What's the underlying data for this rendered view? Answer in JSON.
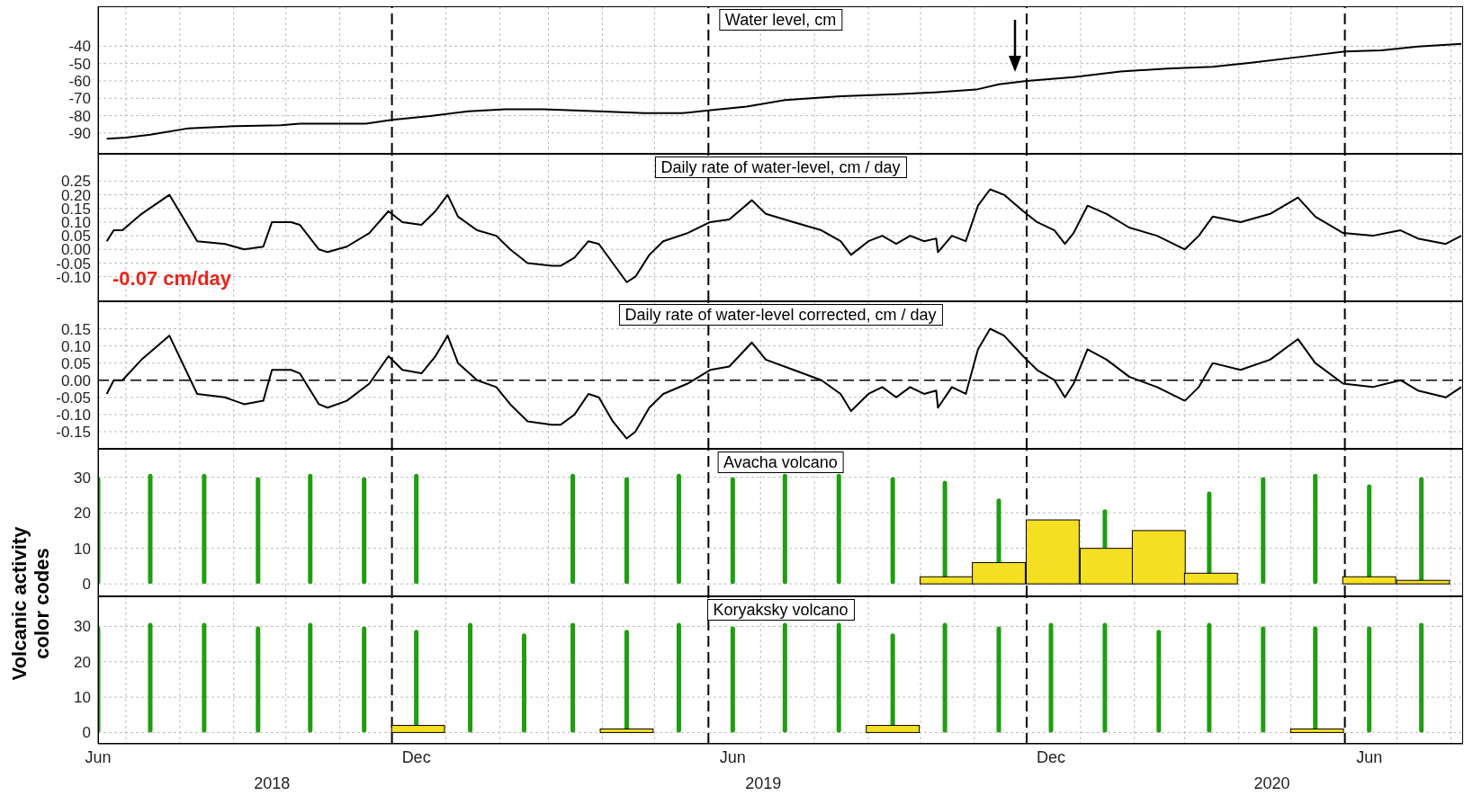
{
  "chart_data": [
    {
      "type": "line",
      "title": "Water level, cm",
      "xlim": [
        "2018-06-15",
        "2020-08-08"
      ],
      "ylim": [
        -102,
        -17
      ],
      "yticks": [
        -90,
        -80,
        -70,
        -60,
        -50,
        -40
      ],
      "grid": true,
      "tick_labels": "y",
      "xticks": [
        {
          "value": "2018-07-01",
          "label": null
        },
        {
          "value": "2018-08-01",
          "label": null
        },
        {
          "value": "2018-09-01",
          "label": null
        },
        {
          "value": "2018-10-01",
          "label": null
        },
        {
          "value": "2018-11-01",
          "label": null
        },
        {
          "value": "2019-01-01",
          "label": null
        },
        {
          "value": "2019-02-01",
          "label": null
        },
        {
          "value": "2019-03-01",
          "label": null
        },
        {
          "value": "2019-04-01",
          "label": null
        },
        {
          "value": "2019-05-01",
          "label": null
        },
        {
          "value": "2019-07-01",
          "label": null
        },
        {
          "value": "2019-08-01",
          "label": null
        },
        {
          "value": "2019-09-01",
          "label": null
        },
        {
          "value": "2019-10-01",
          "label": null
        },
        {
          "value": "2019-11-01",
          "label": null
        },
        {
          "value": "2020-01-01",
          "label": null
        },
        {
          "value": "2020-02-01",
          "label": null
        },
        {
          "value": "2020-03-01",
          "label": null
        },
        {
          "value": "2020-04-01",
          "label": null
        },
        {
          "value": "2020-05-01",
          "label": null
        },
        {
          "value": "2020-07-01",
          "label": null
        },
        {
          "value": "2020-08-01",
          "label": null
        }
      ],
      "ref_lines": [
        {
          "axis": "x",
          "value": "2018-12-01",
          "color": "#000000",
          "line_style": "dashed"
        },
        {
          "axis": "x",
          "value": "2019-06-01",
          "color": "#000000",
          "line_style": "dashed"
        },
        {
          "axis": "x",
          "value": "2019-12-01",
          "color": "#000000",
          "line_style": "dashed"
        },
        {
          "axis": "x",
          "value": "2020-06-01",
          "color": "#000000",
          "line_style": "dashed"
        }
      ],
      "series": [
        {
          "color": "#000000",
          "x": [
            "2018-06-20",
            "2018-07-01",
            "2018-07-15",
            "2018-08-06",
            "2018-09-02",
            "2018-09-28",
            "2018-10-09",
            "2018-11-16",
            "2018-12-01",
            "2018-12-23",
            "2019-01-14",
            "2019-02-04",
            "2019-02-26",
            "2019-03-30",
            "2019-04-25",
            "2019-05-17",
            "2019-06-01",
            "2019-06-23",
            "2019-07-15",
            "2019-08-16",
            "2019-09-17",
            "2019-10-09",
            "2019-11-02",
            "2019-11-15",
            "2019-12-01",
            "2019-12-28",
            "2020-01-24",
            "2020-02-20",
            "2020-03-17",
            "2020-04-08",
            "2020-05-10",
            "2020-06-01",
            "2020-06-22",
            "2020-07-13",
            "2020-08-07"
          ],
          "values": [
            -93.3,
            -92.7,
            -91,
            -87.3,
            -86,
            -85.6,
            -84.6,
            -84.6,
            -82.4,
            -80.2,
            -77.5,
            -76.4,
            -76.4,
            -77.5,
            -78.6,
            -78.6,
            -77,
            -74.8,
            -71,
            -68.8,
            -67.7,
            -66.6,
            -65,
            -62,
            -60,
            -57.8,
            -54.6,
            -52.9,
            -51.8,
            -49.5,
            -45.7,
            -43,
            -42.4,
            -40.2,
            -38.6
          ]
        }
      ]
    },
    {
      "type": "line",
      "title": "Daily rate of water-level, cm / day",
      "annotations": [
        "-0.07 cm/day"
      ],
      "xlim": [
        "2018-06-15",
        "2020-08-08"
      ],
      "ylim": [
        -0.19,
        0.35
      ],
      "yticks": [
        {
          "value": -0.1,
          "label": "-0.10"
        },
        -0.05,
        {
          "value": 0,
          "label": "0.00"
        },
        0.05,
        {
          "value": 0.1,
          "label": "0.10"
        },
        0.15,
        {
          "value": 0.2,
          "label": "0.20"
        },
        0.25
      ],
      "grid": true,
      "tick_labels": "y",
      "xticks": [
        {
          "value": "2018-07-01",
          "label": null
        },
        {
          "value": "2018-08-01",
          "label": null
        },
        {
          "value": "2018-09-01",
          "label": null
        },
        {
          "value": "2018-10-01",
          "label": null
        },
        {
          "value": "2018-11-01",
          "label": null
        },
        {
          "value": "2019-01-01",
          "label": null
        },
        {
          "value": "2019-02-01",
          "label": null
        },
        {
          "value": "2019-03-01",
          "label": null
        },
        {
          "value": "2019-04-01",
          "label": null
        },
        {
          "value": "2019-05-01",
          "label": null
        },
        {
          "value": "2019-07-01",
          "label": null
        },
        {
          "value": "2019-08-01",
          "label": null
        },
        {
          "value": "2019-09-01",
          "label": null
        },
        {
          "value": "2019-10-01",
          "label": null
        },
        {
          "value": "2019-11-01",
          "label": null
        },
        {
          "value": "2020-01-01",
          "label": null
        },
        {
          "value": "2020-02-01",
          "label": null
        },
        {
          "value": "2020-03-01",
          "label": null
        },
        {
          "value": "2020-04-01",
          "label": null
        },
        {
          "value": "2020-05-01",
          "label": null
        },
        {
          "value": "2020-07-01",
          "label": null
        },
        {
          "value": "2020-08-01",
          "label": null
        }
      ],
      "ref_lines": [
        {
          "axis": "x",
          "value": "2018-12-01",
          "color": "#000000",
          "line_style": "dashed"
        },
        {
          "axis": "x",
          "value": "2019-06-01",
          "color": "#000000",
          "line_style": "dashed"
        },
        {
          "axis": "x",
          "value": "2019-12-01",
          "color": "#000000",
          "line_style": "dashed"
        },
        {
          "axis": "x",
          "value": "2020-06-01",
          "color": "#000000",
          "line_style": "dashed"
        }
      ],
      "series": [
        {
          "color": "#000000",
          "x": [
            "2018-06-20",
            "2018-06-24",
            "2018-06-29",
            "2018-07-10",
            "2018-07-26",
            "2018-08-11",
            "2018-08-27",
            "2018-09-07",
            "2018-09-18",
            "2018-09-23",
            "2018-10-04",
            "2018-10-09",
            "2018-10-20",
            "2018-10-25",
            "2018-11-05",
            "2018-11-18",
            "2018-11-29",
            "2018-12-07",
            "2018-12-18",
            "2018-12-26",
            "2019-01-02",
            "2019-01-08",
            "2019-01-19",
            "2019-01-30",
            "2019-02-07",
            "2019-02-17",
            "2019-03-03",
            "2019-03-08",
            "2019-03-16",
            "2019-03-24",
            "2019-03-30",
            "2019-04-07",
            "2019-04-15",
            "2019-04-20",
            "2019-04-28",
            "2019-05-06",
            "2019-05-20",
            "2019-06-02",
            "2019-06-13",
            "2019-06-26",
            "2019-07-04",
            "2019-07-20",
            "2019-08-05",
            "2019-08-16",
            "2019-08-22",
            "2019-09-01",
            "2019-09-09",
            "2019-09-17",
            "2019-09-25",
            "2019-10-03",
            "2019-10-10",
            "2019-10-11",
            "2019-10-19",
            "2019-10-27",
            "2019-11-03",
            "2019-11-10",
            "2019-11-18",
            "2019-11-29",
            "2019-12-07",
            "2019-12-17",
            "2019-12-23",
            "2019-12-28",
            "2020-01-05",
            "2020-01-16",
            "2020-01-29",
            "2020-02-14",
            "2020-03-01",
            "2020-03-09",
            "2020-03-17",
            "2020-04-02",
            "2020-04-19",
            "2020-05-05",
            "2020-05-15",
            "2020-05-31",
            "2020-06-17",
            "2020-07-03",
            "2020-07-13",
            "2020-07-29",
            "2020-08-07"
          ],
          "values": [
            0.03,
            0.07,
            0.07,
            0.13,
            0.2,
            0.03,
            0.02,
            0,
            0.01,
            0.1,
            0.1,
            0.09,
            0,
            -0.01,
            0.01,
            0.06,
            0.14,
            0.1,
            0.09,
            0.14,
            0.2,
            0.12,
            0.07,
            0.05,
            0,
            -0.05,
            -0.06,
            -0.06,
            -0.03,
            0.03,
            0.02,
            -0.05,
            -0.12,
            -0.1,
            -0.02,
            0.03,
            0.06,
            0.1,
            0.11,
            0.18,
            0.13,
            0.1,
            0.07,
            0.03,
            -0.02,
            0.03,
            0.05,
            0.02,
            0.05,
            0.03,
            0.04,
            -0.01,
            0.05,
            0.03,
            0.16,
            0.22,
            0.2,
            0.14,
            0.1,
            0.07,
            0.02,
            0.06,
            0.16,
            0.13,
            0.08,
            0.05,
            0,
            0.05,
            0.12,
            0.1,
            0.13,
            0.19,
            0.12,
            0.06,
            0.05,
            0.07,
            0.04,
            0.02,
            0.05
          ]
        }
      ]
    },
    {
      "type": "line",
      "title": "Daily rate of water-level corrected, cm / day",
      "xlim": [
        "2018-06-15",
        "2020-08-08"
      ],
      "ylim": [
        -0.2,
        0.23
      ],
      "yticks": [
        -0.15,
        {
          "value": -0.1,
          "label": "-0.10"
        },
        -0.05,
        {
          "value": 0,
          "label": "0.00"
        },
        0.05,
        {
          "value": 0.1,
          "label": "0.10"
        },
        0.15
      ],
      "grid": true,
      "tick_labels": "y",
      "xticks": [
        {
          "value": "2018-07-01",
          "label": null
        },
        {
          "value": "2018-08-01",
          "label": null
        },
        {
          "value": "2018-09-01",
          "label": null
        },
        {
          "value": "2018-10-01",
          "label": null
        },
        {
          "value": "2018-11-01",
          "label": null
        },
        {
          "value": "2019-01-01",
          "label": null
        },
        {
          "value": "2019-02-01",
          "label": null
        },
        {
          "value": "2019-03-01",
          "label": null
        },
        {
          "value": "2019-04-01",
          "label": null
        },
        {
          "value": "2019-05-01",
          "label": null
        },
        {
          "value": "2019-07-01",
          "label": null
        },
        {
          "value": "2019-08-01",
          "label": null
        },
        {
          "value": "2019-09-01",
          "label": null
        },
        {
          "value": "2019-10-01",
          "label": null
        },
        {
          "value": "2019-11-01",
          "label": null
        },
        {
          "value": "2020-01-01",
          "label": null
        },
        {
          "value": "2020-02-01",
          "label": null
        },
        {
          "value": "2020-03-01",
          "label": null
        },
        {
          "value": "2020-04-01",
          "label": null
        },
        {
          "value": "2020-05-01",
          "label": null
        },
        {
          "value": "2020-07-01",
          "label": null
        },
        {
          "value": "2020-08-01",
          "label": null
        }
      ],
      "ref_lines": [
        {
          "axis": "x",
          "value": "2018-12-01",
          "color": "#000000",
          "line_style": "dashed"
        },
        {
          "axis": "x",
          "value": "2019-06-01",
          "color": "#000000",
          "line_style": "dashed"
        },
        {
          "axis": "x",
          "value": "2019-12-01",
          "color": "#000000",
          "line_style": "dashed"
        },
        {
          "axis": "x",
          "value": "2020-06-01",
          "color": "#000000",
          "line_style": "dashed"
        },
        {
          "axis": "y",
          "value": 0,
          "color": "#000000",
          "line_style": "dashed"
        }
      ],
      "series": [
        {
          "color": "#000000",
          "x": [
            "2018-06-20",
            "2018-06-24",
            "2018-06-29",
            "2018-07-10",
            "2018-07-26",
            "2018-08-11",
            "2018-08-27",
            "2018-09-07",
            "2018-09-18",
            "2018-09-23",
            "2018-10-04",
            "2018-10-09",
            "2018-10-20",
            "2018-10-25",
            "2018-11-05",
            "2018-11-18",
            "2018-11-29",
            "2018-12-07",
            "2018-12-18",
            "2018-12-26",
            "2019-01-02",
            "2019-01-08",
            "2019-01-19",
            "2019-01-30",
            "2019-02-07",
            "2019-02-17",
            "2019-03-03",
            "2019-03-08",
            "2019-03-16",
            "2019-03-24",
            "2019-03-30",
            "2019-04-07",
            "2019-04-15",
            "2019-04-20",
            "2019-04-28",
            "2019-05-06",
            "2019-05-20",
            "2019-06-02",
            "2019-06-13",
            "2019-06-26",
            "2019-07-04",
            "2019-07-20",
            "2019-08-05",
            "2019-08-16",
            "2019-08-22",
            "2019-09-01",
            "2019-09-09",
            "2019-09-17",
            "2019-09-25",
            "2019-10-03",
            "2019-10-10",
            "2019-10-11",
            "2019-10-19",
            "2019-10-27",
            "2019-11-03",
            "2019-11-10",
            "2019-11-18",
            "2019-11-29",
            "2019-12-07",
            "2019-12-17",
            "2019-12-23",
            "2019-12-28",
            "2020-01-05",
            "2020-01-16",
            "2020-01-29",
            "2020-02-14",
            "2020-03-01",
            "2020-03-09",
            "2020-03-17",
            "2020-04-02",
            "2020-04-19",
            "2020-05-05",
            "2020-05-15",
            "2020-05-31",
            "2020-06-17",
            "2020-07-03",
            "2020-07-13",
            "2020-07-29",
            "2020-08-07"
          ],
          "values": [
            -0.04,
            0,
            0,
            0.06,
            0.13,
            -0.04,
            -0.05,
            -0.07,
            -0.06,
            0.03,
            0.03,
            0.02,
            -0.07,
            -0.08,
            -0.06,
            -0.01,
            0.07,
            0.03,
            0.02,
            0.07,
            0.13,
            0.05,
            0,
            -0.02,
            -0.07,
            -0.12,
            -0.13,
            -0.13,
            -0.1,
            -0.04,
            -0.05,
            -0.12,
            -0.17,
            -0.15,
            -0.08,
            -0.04,
            -0.01,
            0.03,
            0.04,
            0.11,
            0.06,
            0.03,
            0,
            -0.04,
            -0.09,
            -0.04,
            -0.02,
            -0.05,
            -0.02,
            -0.04,
            -0.03,
            -0.08,
            -0.02,
            -0.04,
            0.09,
            0.15,
            0.13,
            0.07,
            0.03,
            0,
            -0.05,
            -0.01,
            0.09,
            0.06,
            0.01,
            -0.02,
            -0.06,
            -0.02,
            0.05,
            0.03,
            0.06,
            0.12,
            0.05,
            -0.01,
            -0.02,
            0,
            -0.03,
            -0.05,
            -0.02
          ]
        }
      ]
    },
    {
      "type": "bar",
      "title": "Avacha volcano",
      "ylabel": "Volcanic activity color codes",
      "xlim": [
        "2018-06-15",
        "2020-08-08"
      ],
      "ylim": [
        -3.5,
        38
      ],
      "yticks": [
        0,
        10,
        20,
        30
      ],
      "grid": true,
      "tick_labels": "y",
      "xticks": [
        {
          "value": "2018-07-01",
          "label": null
        },
        {
          "value": "2018-08-01",
          "label": null
        },
        {
          "value": "2018-09-01",
          "label": null
        },
        {
          "value": "2018-10-01",
          "label": null
        },
        {
          "value": "2018-11-01",
          "label": null
        },
        {
          "value": "2019-01-01",
          "label": null
        },
        {
          "value": "2019-02-01",
          "label": null
        },
        {
          "value": "2019-03-01",
          "label": null
        },
        {
          "value": "2019-04-01",
          "label": null
        },
        {
          "value": "2019-05-01",
          "label": null
        },
        {
          "value": "2019-07-01",
          "label": null
        },
        {
          "value": "2019-08-01",
          "label": null
        },
        {
          "value": "2019-09-01",
          "label": null
        },
        {
          "value": "2019-10-01",
          "label": null
        },
        {
          "value": "2019-11-01",
          "label": null
        },
        {
          "value": "2020-01-01",
          "label": null
        },
        {
          "value": "2020-02-01",
          "label": null
        },
        {
          "value": "2020-03-01",
          "label": null
        },
        {
          "value": "2020-04-01",
          "label": null
        },
        {
          "value": "2020-05-01",
          "label": null
        },
        {
          "value": "2020-07-01",
          "label": null
        },
        {
          "value": "2020-08-01",
          "label": null
        }
      ],
      "ref_lines": [
        {
          "axis": "x",
          "value": "2018-12-01",
          "color": "#000000",
          "line_style": "dashed"
        },
        {
          "axis": "x",
          "value": "2019-06-01",
          "color": "#000000",
          "line_style": "dashed"
        },
        {
          "axis": "x",
          "value": "2019-12-01",
          "color": "#000000",
          "line_style": "dashed"
        },
        {
          "axis": "x",
          "value": "2020-06-01",
          "color": "#000000",
          "line_style": "dashed"
        }
      ],
      "series": [
        {
          "color": "#1f9e10",
          "x": [
            "2018-06-15",
            "2018-07-15",
            "2018-08-15",
            "2018-09-15",
            "2018-10-15",
            "2018-11-15",
            "2018-12-15",
            "2019-01-15",
            "2019-02-15",
            "2019-03-15",
            "2019-04-15",
            "2019-05-15",
            "2019-06-15",
            "2019-07-15",
            "2019-08-15",
            "2019-09-15",
            "2019-10-15",
            "2019-11-15",
            "2019-12-15",
            "2020-01-15",
            "2020-02-15",
            "2020-03-15",
            "2020-04-15",
            "2020-05-15",
            "2020-06-15",
            "2020-07-15"
          ],
          "values": [
            30,
            31,
            31,
            30,
            31,
            30,
            31,
            null,
            null,
            31,
            30,
            31,
            30,
            31,
            31,
            30,
            29,
            24,
            null,
            21,
            null,
            26,
            30,
            31,
            28,
            30
          ]
        },
        {
          "color": "#f5df22",
          "x": [
            "2019-10-16",
            "2019-11-15",
            "2019-12-16",
            "2020-01-16",
            "2020-02-15",
            "2020-03-16",
            "2020-06-15",
            "2020-07-16"
          ],
          "values": [
            2,
            6,
            18,
            10,
            15,
            3,
            2,
            1
          ]
        }
      ]
    },
    {
      "type": "bar",
      "title": "Koryaksky volcano",
      "annotations": [
        "2018",
        "2019",
        "2020"
      ],
      "xlim": [
        "2018-06-15",
        "2020-08-08"
      ],
      "ylim": [
        -3.2,
        38.5
      ],
      "yticks": [
        0,
        10,
        20,
        30
      ],
      "grid": true,
      "xticks": [
        {
          "value": "2018-06-15",
          "label": "Jun"
        },
        {
          "value": "2018-12-15",
          "label": "Dec"
        },
        {
          "value": "2019-06-15",
          "label": "Jun"
        },
        {
          "value": "2019-12-15",
          "label": "Dec"
        },
        {
          "value": "2020-06-15",
          "label": "Jun"
        },
        {
          "value": "2018-07-01",
          "label": null
        },
        {
          "value": "2018-08-01",
          "label": null
        },
        {
          "value": "2018-09-01",
          "label": null
        },
        {
          "value": "2018-10-01",
          "label": null
        },
        {
          "value": "2018-11-01",
          "label": null
        },
        {
          "value": "2019-01-01",
          "label": null
        },
        {
          "value": "2019-02-01",
          "label": null
        },
        {
          "value": "2019-03-01",
          "label": null
        },
        {
          "value": "2019-04-01",
          "label": null
        },
        {
          "value": "2019-05-01",
          "label": null
        },
        {
          "value": "2019-07-01",
          "label": null
        },
        {
          "value": "2019-08-01",
          "label": null
        },
        {
          "value": "2019-09-01",
          "label": null
        },
        {
          "value": "2019-10-01",
          "label": null
        },
        {
          "value": "2019-11-01",
          "label": null
        },
        {
          "value": "2020-01-01",
          "label": null
        },
        {
          "value": "2020-02-01",
          "label": null
        },
        {
          "value": "2020-03-01",
          "label": null
        },
        {
          "value": "2020-04-01",
          "label": null
        },
        {
          "value": "2020-05-01",
          "label": null
        },
        {
          "value": "2020-07-01",
          "label": null
        },
        {
          "value": "2020-08-01",
          "label": null
        }
      ],
      "ref_lines": [
        {
          "axis": "x",
          "value": "2018-12-01",
          "color": "#000000",
          "line_style": "dashed"
        },
        {
          "axis": "x",
          "value": "2019-06-01",
          "color": "#000000",
          "line_style": "dashed"
        },
        {
          "axis": "x",
          "value": "2019-12-01",
          "color": "#000000",
          "line_style": "dashed"
        },
        {
          "axis": "x",
          "value": "2020-06-01",
          "color": "#000000",
          "line_style": "dashed"
        }
      ],
      "series": [
        {
          "color": "#1f9e10",
          "x": [
            "2018-06-15",
            "2018-07-15",
            "2018-08-15",
            "2018-09-15",
            "2018-10-15",
            "2018-11-15",
            "2018-12-15",
            "2019-01-15",
            "2019-02-15",
            "2019-03-15",
            "2019-04-15",
            "2019-05-15",
            "2019-06-15",
            "2019-07-15",
            "2019-08-15",
            "2019-09-15",
            "2019-10-15",
            "2019-11-15",
            "2019-12-15",
            "2020-01-15",
            "2020-02-15",
            "2020-03-15",
            "2020-04-15",
            "2020-05-15",
            "2020-06-15",
            "2020-07-15"
          ],
          "values": [
            30,
            31,
            31,
            30,
            31,
            30,
            29,
            31,
            28,
            31,
            29,
            31,
            30,
            31,
            31,
            28,
            31,
            30,
            31,
            31,
            29,
            31,
            30,
            30,
            30,
            31
          ]
        },
        {
          "color": "#f5df22",
          "x": [
            "2018-12-16",
            "2019-04-15",
            "2019-09-15",
            "2020-05-16"
          ],
          "values": [
            2,
            1,
            2,
            1
          ]
        }
      ]
    }
  ]
}
